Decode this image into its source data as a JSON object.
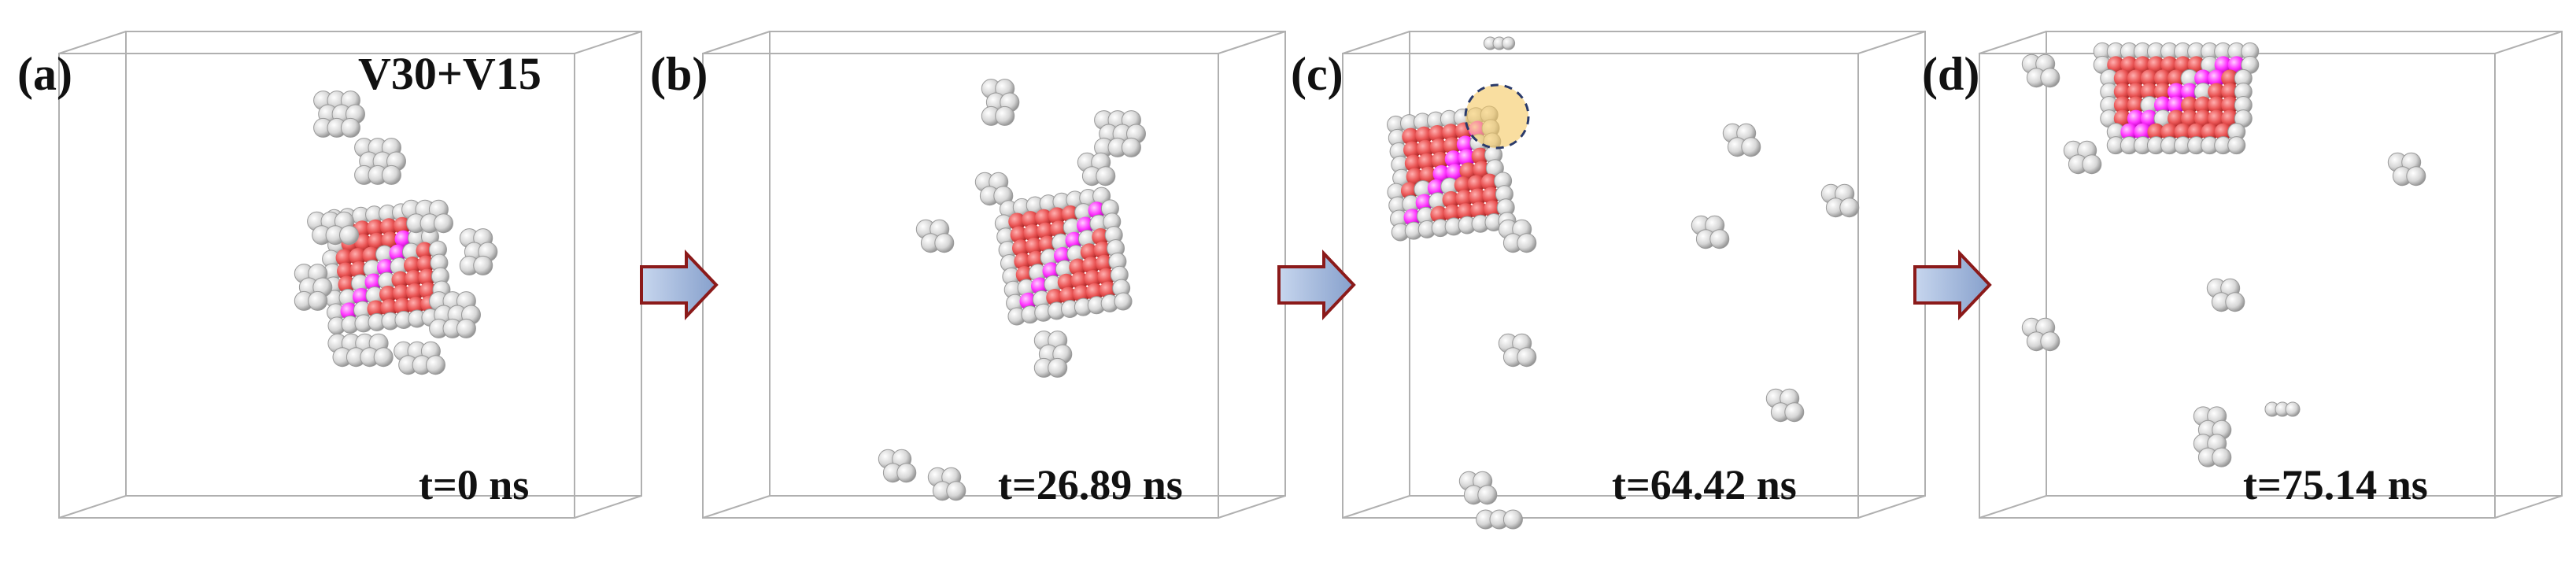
{
  "panels": [
    {
      "label": "(a)",
      "title": "V30+V15",
      "time": "t=0 ns"
    },
    {
      "label": "(b)",
      "title": "",
      "time": "t=26.89 ns"
    },
    {
      "label": "(c)",
      "title": "",
      "time": "t=64.42 ns"
    },
    {
      "label": "(d)",
      "title": "",
      "time": "t=75.14 ns"
    }
  ],
  "colors": {
    "box_line": "#b0b0b0",
    "gray_atom": "#cfcfcf",
    "red_atom": "#e85050",
    "magenta_atom": "#ff30ff",
    "arrow_fill": "#9bb3da",
    "arrow_stroke": "#8b1a1a",
    "highlight_fill": "#f5c860",
    "highlight_stroke": "#2a3a6a"
  },
  "icons": {
    "arrow": "right-arrow-icon"
  }
}
